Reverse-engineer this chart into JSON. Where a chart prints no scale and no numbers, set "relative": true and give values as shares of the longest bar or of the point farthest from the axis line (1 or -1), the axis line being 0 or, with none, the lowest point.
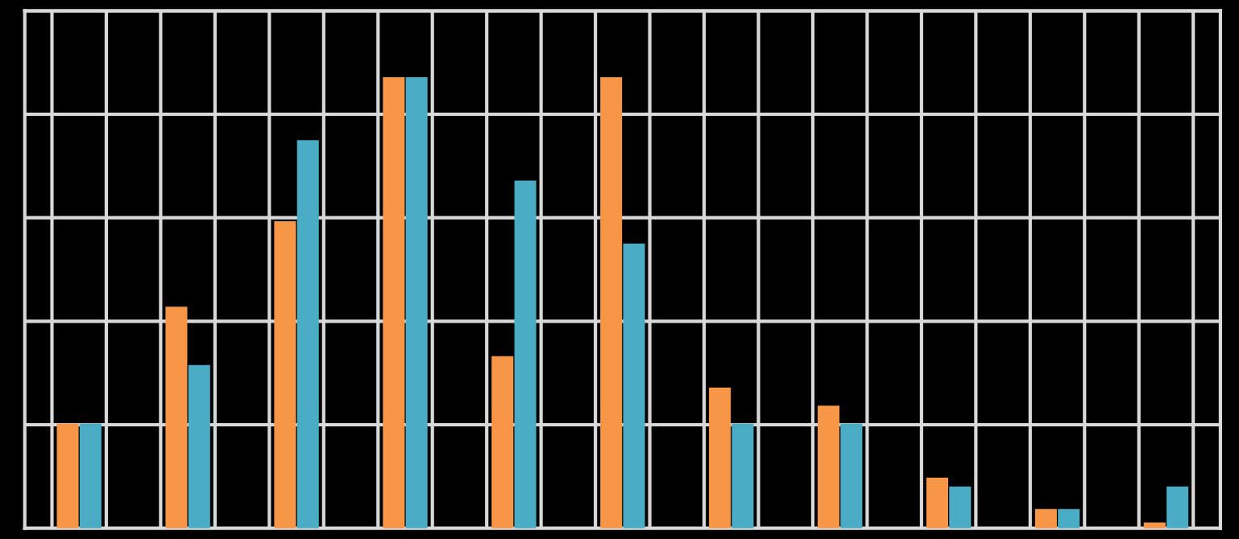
{
  "chart_data": {
    "type": "bar",
    "relative": true,
    "grid": true,
    "legend": false,
    "categories": [
      null,
      null,
      null,
      null,
      null,
      null,
      null,
      null,
      null,
      null,
      null
    ],
    "series": [
      {
        "color": "#f79646",
        "values": [
          0.23,
          0.49,
          0.68,
          1,
          0.38,
          1,
          0.31,
          0.27,
          0.11,
          0.04,
          0.01
        ]
      },
      {
        "color": "#4bacc6",
        "values": [
          0.23,
          0.36,
          0.86,
          1,
          0.77,
          0.63,
          0.23,
          0.23,
          0.09,
          0.04,
          0.09
        ]
      }
    ]
  }
}
